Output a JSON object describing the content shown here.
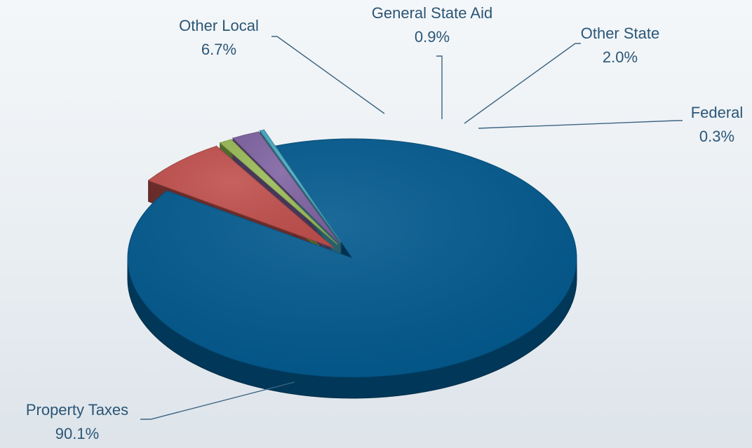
{
  "chart_data": {
    "type": "pie",
    "title": "",
    "three_d": true,
    "exploded": true,
    "slices": [
      {
        "label": "Property Taxes",
        "value": 90.1,
        "display": "90.1%",
        "color": "#02598e"
      },
      {
        "label": "Other Local",
        "value": 6.7,
        "display": "6.7%",
        "color": "#c0504d"
      },
      {
        "label": "General State Aid",
        "value": 0.9,
        "display": "0.9%",
        "color": "#9bbb59"
      },
      {
        "label": "Other State",
        "value": 2.0,
        "display": "2.0%",
        "color": "#8064a2"
      },
      {
        "label": "Federal",
        "value": 0.3,
        "display": "0.3%",
        "color": "#4bacc6"
      }
    ],
    "legend": "none",
    "data_labels": "outside with leader lines"
  }
}
